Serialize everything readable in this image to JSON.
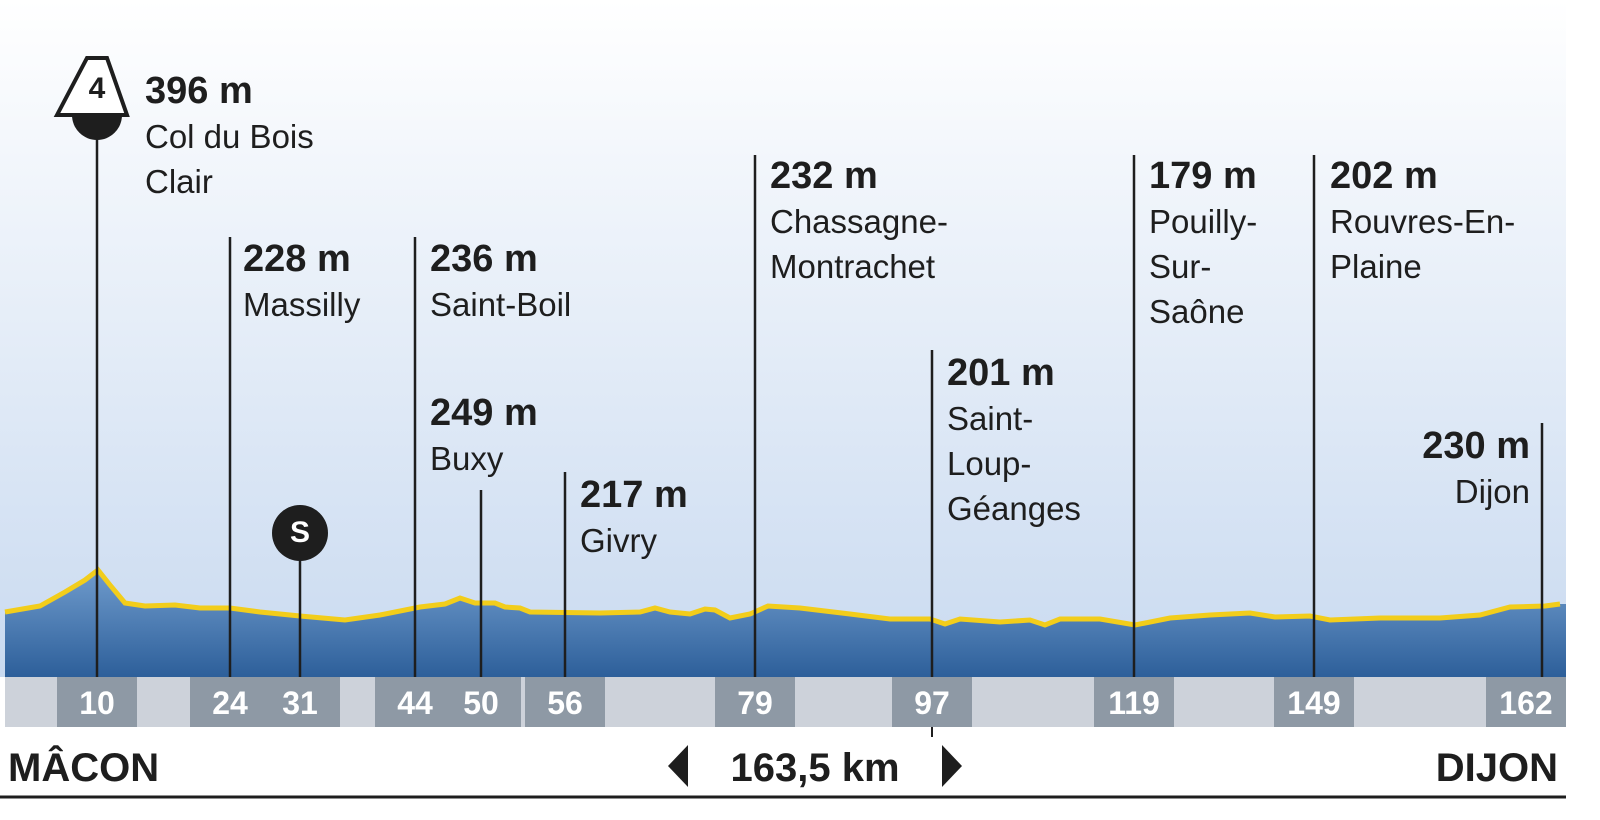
{
  "profile": {
    "markers": [
      {
        "km": "10",
        "elevation": "396 m",
        "place": "Col du Bois Clair",
        "badge": "4"
      },
      {
        "km": "24",
        "elevation": "228 m",
        "place": "Massilly"
      },
      {
        "km": "31",
        "badge": "S"
      },
      {
        "km": "44",
        "elevation": "236 m",
        "place": "Saint-Boil"
      },
      {
        "km": "50",
        "elevation": "249 m",
        "place": "Buxy"
      },
      {
        "km": "56",
        "elevation": "217 m",
        "place": "Givry"
      },
      {
        "km": "79",
        "elevation": "232 m",
        "place": "Chassagne-Montrachet"
      },
      {
        "km": "97",
        "elevation": "201 m",
        "place": "Saint-Loup-Géanges"
      },
      {
        "km": "119",
        "elevation": "179 m",
        "place": "Pouilly-Sur-Saône"
      },
      {
        "km": "149",
        "elevation": "202 m",
        "place": "Rouvres-En-Plaine"
      },
      {
        "km": "162",
        "elevation": "230 m",
        "place": "Dijon"
      }
    ],
    "start": "MÂCON",
    "finish": "DIJON",
    "distance": "163,5 km"
  }
}
